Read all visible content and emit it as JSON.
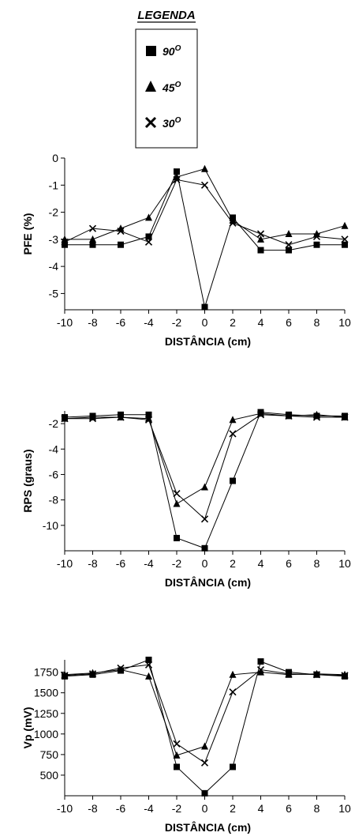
{
  "legend": {
    "title": "LEGENDA",
    "items": [
      {
        "label": "90",
        "sup": "O",
        "marker": "square"
      },
      {
        "label": "45",
        "sup": "O",
        "marker": "triangle"
      },
      {
        "label": "30",
        "sup": "O",
        "marker": "cross"
      }
    ]
  },
  "chart_data": [
    {
      "type": "line",
      "xlabel": "DISTÂNCIA (cm)",
      "ylabel": "PFE (%)",
      "x": [
        -10,
        -8,
        -6,
        -4,
        -2,
        0,
        2,
        4,
        6,
        8,
        10
      ],
      "xlim": [
        -10,
        10
      ],
      "ylim": [
        -5.6,
        0
      ],
      "xticks": [
        -10,
        -8,
        -6,
        -4,
        -2,
        0,
        2,
        4,
        6,
        8,
        10
      ],
      "yticks": [
        0,
        -1,
        -2,
        -3,
        -4,
        -5
      ],
      "ytick_labels": [
        "0",
        "-1",
        "-2",
        "-3",
        "-4",
        "-5"
      ],
      "series": [
        {
          "name": "90",
          "marker": "square",
          "values": [
            -3.2,
            -3.2,
            -3.2,
            -2.9,
            -0.5,
            -5.5,
            -2.2,
            -3.4,
            -3.4,
            -3.2,
            -3.2
          ]
        },
        {
          "name": "45",
          "marker": "triangle",
          "values": [
            -3.0,
            -3.0,
            -2.6,
            -2.2,
            -0.7,
            -0.4,
            -2.3,
            -3.0,
            -2.8,
            -2.8,
            -2.5
          ]
        },
        {
          "name": "30",
          "marker": "cross",
          "values": [
            -3.1,
            -2.6,
            -2.7,
            -3.1,
            -0.8,
            -1.0,
            -2.4,
            -2.8,
            -3.2,
            -2.9,
            -3.0
          ]
        }
      ]
    },
    {
      "type": "line",
      "xlabel": "DISTÂNCIA (cm)",
      "ylabel": "RPS (graus)",
      "x": [
        -10,
        -8,
        -6,
        -4,
        -2,
        0,
        2,
        4,
        6,
        8,
        10
      ],
      "xlim": [
        -10,
        10
      ],
      "ylim": [
        -12,
        -1
      ],
      "xticks": [
        -10,
        -8,
        -6,
        -4,
        -2,
        0,
        2,
        4,
        6,
        8,
        10
      ],
      "yticks": [
        -2,
        -4,
        -6,
        -8,
        -10
      ],
      "ytick_labels": [
        "-2",
        "-4",
        "-6",
        "-8",
        "-10"
      ],
      "series": [
        {
          "name": "90",
          "marker": "square",
          "values": [
            -1.5,
            -1.4,
            -1.3,
            -1.3,
            -11.0,
            -11.8,
            -6.5,
            -1.1,
            -1.3,
            -1.4,
            -1.4
          ]
        },
        {
          "name": "45",
          "marker": "triangle",
          "values": [
            -1.6,
            -1.5,
            -1.5,
            -1.6,
            -8.3,
            -7.0,
            -1.7,
            -1.2,
            -1.4,
            -1.3,
            -1.5
          ]
        },
        {
          "name": "30",
          "marker": "cross",
          "values": [
            -1.6,
            -1.6,
            -1.5,
            -1.7,
            -7.5,
            -9.5,
            -2.8,
            -1.3,
            -1.4,
            -1.5,
            -1.5
          ]
        }
      ]
    },
    {
      "type": "line",
      "xlabel": "DISTÂNCIA (cm)",
      "ylabel": "Vp (mV)",
      "x": [
        -10,
        -8,
        -6,
        -4,
        -2,
        0,
        2,
        4,
        6,
        8,
        10
      ],
      "xlim": [
        -10,
        10
      ],
      "ylim": [
        250,
        1900
      ],
      "xticks": [
        -10,
        -8,
        -6,
        -4,
        -2,
        0,
        2,
        4,
        6,
        8,
        10
      ],
      "yticks": [
        500,
        750,
        1000,
        1250,
        1500,
        1750
      ],
      "ytick_labels": [
        "500",
        "750",
        "1000",
        "1250",
        "1500",
        "1750"
      ],
      "series": [
        {
          "name": "90",
          "marker": "square",
          "values": [
            1700,
            1720,
            1770,
            1900,
            600,
            280,
            600,
            1880,
            1750,
            1720,
            1700
          ]
        },
        {
          "name": "45",
          "marker": "triangle",
          "values": [
            1720,
            1740,
            1780,
            1700,
            740,
            850,
            1720,
            1750,
            1720,
            1730,
            1720
          ]
        },
        {
          "name": "30",
          "marker": "cross",
          "values": [
            1710,
            1730,
            1800,
            1840,
            880,
            650,
            1510,
            1780,
            1730,
            1720,
            1710
          ]
        }
      ]
    }
  ]
}
